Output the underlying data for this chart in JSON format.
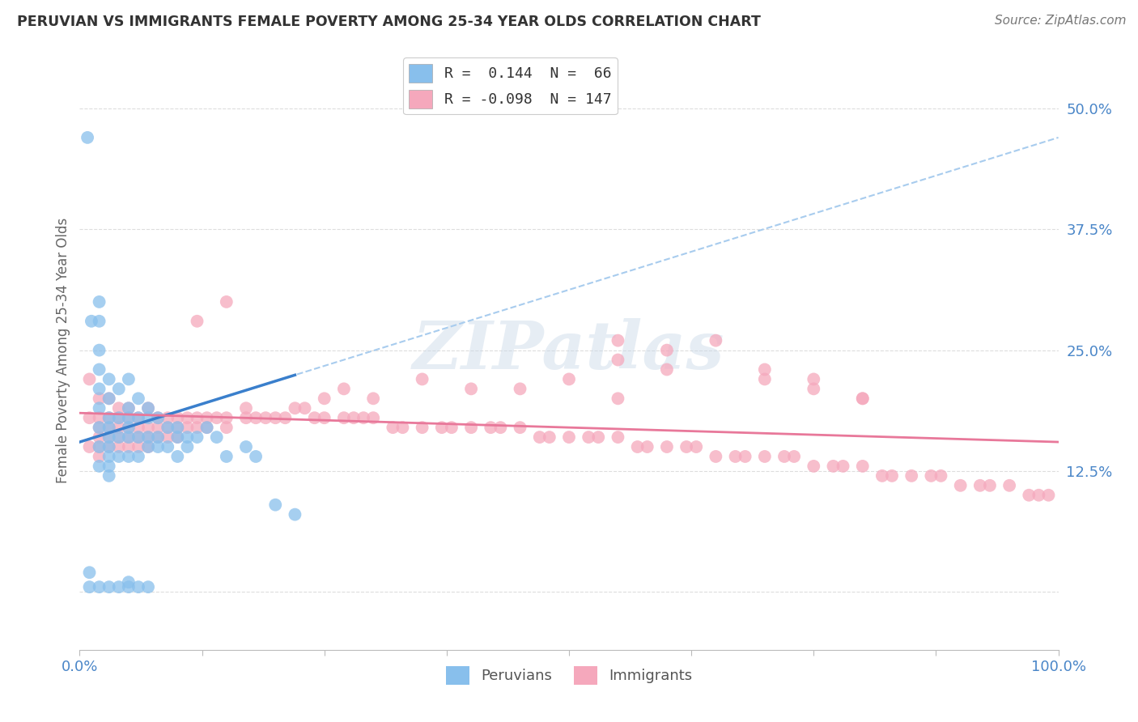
{
  "title": "PERUVIAN VS IMMIGRANTS FEMALE POVERTY AMONG 25-34 YEAR OLDS CORRELATION CHART",
  "source": "Source: ZipAtlas.com",
  "ylabel": "Female Poverty Among 25-34 Year Olds",
  "xlim": [
    0,
    1.0
  ],
  "ylim": [
    -0.06,
    0.56
  ],
  "xticklabels": [
    "0.0%",
    "",
    "",
    "",
    "",
    "",
    "",
    "",
    "100.0%"
  ],
  "ytick_positions": [
    0.0,
    0.125,
    0.25,
    0.375,
    0.5
  ],
  "yticklabels": [
    "",
    "12.5%",
    "25.0%",
    "37.5%",
    "50.0%"
  ],
  "peruvian_color": "#88BFEC",
  "immigrant_color": "#F5A8BC",
  "peruvian_line_color": "#3A7FCC",
  "immigrant_line_color": "#E8789A",
  "dashed_line_color": "#A8CCEE",
  "background_color": "#FFFFFF",
  "watermark": "ZIPatlas",
  "peruvian_R": 0.144,
  "immigrant_R": -0.098,
  "peruvians_x": [
    0.008,
    0.012,
    0.02,
    0.02,
    0.02,
    0.02,
    0.02,
    0.02,
    0.02,
    0.02,
    0.02,
    0.03,
    0.03,
    0.03,
    0.03,
    0.03,
    0.03,
    0.03,
    0.03,
    0.03,
    0.04,
    0.04,
    0.04,
    0.04,
    0.05,
    0.05,
    0.05,
    0.05,
    0.05,
    0.05,
    0.06,
    0.06,
    0.06,
    0.06,
    0.07,
    0.07,
    0.07,
    0.07,
    0.08,
    0.08,
    0.08,
    0.09,
    0.09,
    0.1,
    0.1,
    0.1,
    0.11,
    0.11,
    0.12,
    0.13,
    0.14,
    0.15,
    0.17,
    0.18,
    0.2,
    0.22,
    0.01,
    0.01,
    0.02,
    0.03,
    0.04,
    0.05,
    0.05,
    0.06,
    0.07
  ],
  "peruvians_y": [
    0.47,
    0.28,
    0.3,
    0.28,
    0.25,
    0.23,
    0.21,
    0.19,
    0.17,
    0.15,
    0.13,
    0.22,
    0.2,
    0.18,
    0.17,
    0.16,
    0.15,
    0.14,
    0.13,
    0.12,
    0.21,
    0.18,
    0.16,
    0.14,
    0.22,
    0.19,
    0.18,
    0.17,
    0.16,
    0.14,
    0.2,
    0.18,
    0.16,
    0.14,
    0.19,
    0.18,
    0.16,
    0.15,
    0.18,
    0.16,
    0.15,
    0.17,
    0.15,
    0.17,
    0.16,
    0.14,
    0.16,
    0.15,
    0.16,
    0.17,
    0.16,
    0.14,
    0.15,
    0.14,
    0.09,
    0.08,
    0.02,
    0.005,
    0.005,
    0.005,
    0.005,
    0.005,
    0.01,
    0.005,
    0.005
  ],
  "immigrants_x": [
    0.01,
    0.01,
    0.01,
    0.02,
    0.02,
    0.02,
    0.02,
    0.02,
    0.02,
    0.03,
    0.03,
    0.03,
    0.03,
    0.03,
    0.04,
    0.04,
    0.04,
    0.04,
    0.04,
    0.05,
    0.05,
    0.05,
    0.05,
    0.05,
    0.06,
    0.06,
    0.06,
    0.06,
    0.07,
    0.07,
    0.07,
    0.07,
    0.08,
    0.08,
    0.08,
    0.09,
    0.09,
    0.09,
    0.1,
    0.1,
    0.1,
    0.11,
    0.11,
    0.12,
    0.12,
    0.13,
    0.13,
    0.14,
    0.15,
    0.15,
    0.17,
    0.17,
    0.18,
    0.19,
    0.2,
    0.21,
    0.22,
    0.23,
    0.24,
    0.25,
    0.27,
    0.28,
    0.29,
    0.3,
    0.32,
    0.33,
    0.35,
    0.37,
    0.38,
    0.4,
    0.42,
    0.43,
    0.45,
    0.47,
    0.48,
    0.5,
    0.52,
    0.53,
    0.55,
    0.57,
    0.58,
    0.6,
    0.62,
    0.63,
    0.65,
    0.67,
    0.68,
    0.7,
    0.72,
    0.73,
    0.75,
    0.77,
    0.78,
    0.8,
    0.82,
    0.83,
    0.85,
    0.87,
    0.88,
    0.9,
    0.92,
    0.93,
    0.95,
    0.97,
    0.98,
    0.99,
    0.55,
    0.6,
    0.65,
    0.55,
    0.6,
    0.7,
    0.75,
    0.8,
    0.7,
    0.75,
    0.8,
    0.35,
    0.4,
    0.45,
    0.5,
    0.55,
    0.25,
    0.27,
    0.3,
    0.12,
    0.15
  ],
  "immigrants_y": [
    0.22,
    0.18,
    0.15,
    0.2,
    0.18,
    0.17,
    0.16,
    0.15,
    0.14,
    0.2,
    0.18,
    0.17,
    0.16,
    0.15,
    0.19,
    0.18,
    0.17,
    0.16,
    0.15,
    0.19,
    0.18,
    0.17,
    0.16,
    0.15,
    0.18,
    0.17,
    0.16,
    0.15,
    0.19,
    0.17,
    0.16,
    0.15,
    0.18,
    0.17,
    0.16,
    0.18,
    0.17,
    0.16,
    0.18,
    0.17,
    0.16,
    0.18,
    0.17,
    0.18,
    0.17,
    0.18,
    0.17,
    0.18,
    0.18,
    0.17,
    0.19,
    0.18,
    0.18,
    0.18,
    0.18,
    0.18,
    0.19,
    0.19,
    0.18,
    0.18,
    0.18,
    0.18,
    0.18,
    0.18,
    0.17,
    0.17,
    0.17,
    0.17,
    0.17,
    0.17,
    0.17,
    0.17,
    0.17,
    0.16,
    0.16,
    0.16,
    0.16,
    0.16,
    0.16,
    0.15,
    0.15,
    0.15,
    0.15,
    0.15,
    0.14,
    0.14,
    0.14,
    0.14,
    0.14,
    0.14,
    0.13,
    0.13,
    0.13,
    0.13,
    0.12,
    0.12,
    0.12,
    0.12,
    0.12,
    0.11,
    0.11,
    0.11,
    0.11,
    0.1,
    0.1,
    0.1,
    0.26,
    0.25,
    0.26,
    0.24,
    0.23,
    0.22,
    0.21,
    0.2,
    0.23,
    0.22,
    0.2,
    0.22,
    0.21,
    0.21,
    0.22,
    0.2,
    0.2,
    0.21,
    0.2,
    0.28,
    0.3
  ]
}
